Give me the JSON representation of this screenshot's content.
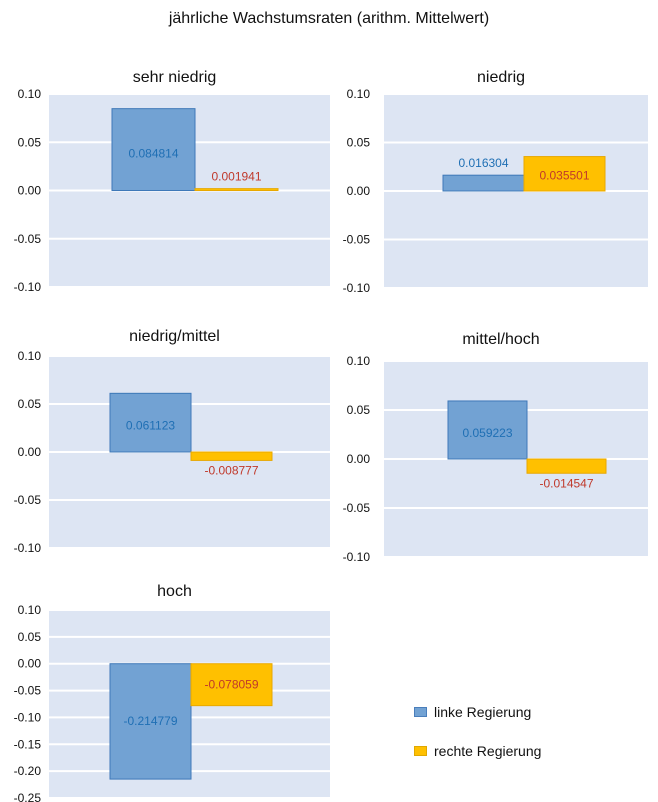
{
  "title": "jährliche Wachstumsraten (arithm. Mittelwert)",
  "legend": [
    {
      "label": "linke Regierung",
      "color": "#72A2D3"
    },
    {
      "label": "rechte Regierung",
      "color": "#FFC000"
    }
  ],
  "chart_data": [
    {
      "type": "bar",
      "title": "sehr niedrig",
      "series": [
        {
          "name": "linke Regierung",
          "values": [
            0.084814
          ]
        },
        {
          "name": "rechte Regierung",
          "values": [
            0.001941
          ]
        }
      ],
      "value_labels": [
        "0.084814",
        "0.001941"
      ],
      "yticks": [
        "0.10",
        "0.05",
        "0.00",
        "-0.05",
        "-0.10"
      ],
      "ylim": [
        -0.1,
        0.1
      ],
      "grid": true
    },
    {
      "type": "bar",
      "title": "niedrig",
      "series": [
        {
          "name": "linke Regierung",
          "values": [
            0.016304
          ]
        },
        {
          "name": "rechte Regierung",
          "values": [
            0.035501
          ]
        }
      ],
      "value_labels": [
        "0.016304",
        "0.035501"
      ],
      "yticks": [
        "0.10",
        "0.05",
        "0.00",
        "-0.05",
        "-0.10"
      ],
      "ylim": [
        -0.1,
        0.1
      ],
      "grid": true
    },
    {
      "type": "bar",
      "title": "niedrig/mittel",
      "series": [
        {
          "name": "linke Regierung",
          "values": [
            0.061123
          ]
        },
        {
          "name": "rechte Regierung",
          "values": [
            -0.008777
          ]
        }
      ],
      "value_labels": [
        "0.061123",
        "-0.008777"
      ],
      "yticks": [
        "0.10",
        "0.05",
        "0.00",
        "-0.05",
        "-0.10"
      ],
      "ylim": [
        -0.1,
        0.1
      ],
      "grid": true
    },
    {
      "type": "bar",
      "title": "mittel/hoch",
      "series": [
        {
          "name": "linke Regierung",
          "values": [
            0.059223
          ]
        },
        {
          "name": "rechte Regierung",
          "values": [
            -0.014547
          ]
        }
      ],
      "value_labels": [
        "0.059223",
        "-0.014547"
      ],
      "yticks": [
        "0.10",
        "0.05",
        "0.00",
        "-0.05",
        "-0.10"
      ],
      "ylim": [
        -0.1,
        0.1
      ],
      "grid": true
    },
    {
      "type": "bar",
      "title": "hoch",
      "series": [
        {
          "name": "linke Regierung",
          "values": [
            -0.214779
          ]
        },
        {
          "name": "rechte Regierung",
          "values": [
            -0.078059
          ]
        }
      ],
      "value_labels": [
        "-0.214779",
        "-0.078059"
      ],
      "yticks": [
        "0.10",
        "0.05",
        "0.00",
        "-0.05",
        "-0.10",
        "-0.15",
        "-0.20",
        "-0.25"
      ],
      "ylim": [
        -0.25,
        0.1
      ],
      "grid": true
    }
  ]
}
